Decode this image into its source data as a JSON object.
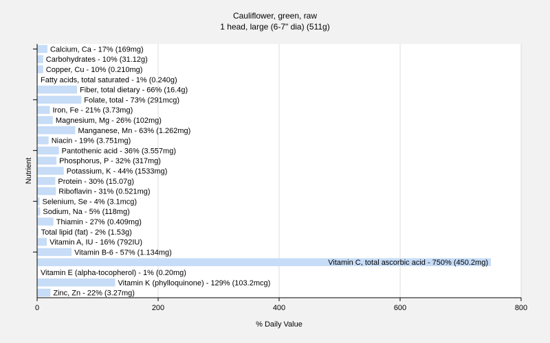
{
  "chart_data": {
    "type": "bar",
    "orientation": "horizontal",
    "title": "Cauliflower, green, raw",
    "subtitle": "1 head, large (6-7\" dia) (511g)",
    "xlabel": "% Daily Value",
    "ylabel": "Nutrient",
    "xlim": [
      0,
      800
    ],
    "xticks": [
      0,
      200,
      400,
      600,
      800
    ],
    "grid": true,
    "bar_color": "#c6dcf7",
    "categories": [
      "Calcium, Ca",
      "Carbohydrates",
      "Copper, Cu",
      "Fatty acids, total saturated",
      "Fiber, total dietary",
      "Folate, total",
      "Iron, Fe",
      "Magnesium, Mg",
      "Manganese, Mn",
      "Niacin",
      "Pantothenic acid",
      "Phosphorus, P",
      "Potassium, K",
      "Protein",
      "Riboflavin",
      "Selenium, Se",
      "Sodium, Na",
      "Thiamin",
      "Total lipid (fat)",
      "Vitamin A, IU",
      "Vitamin B-6",
      "Vitamin C, total ascorbic acid",
      "Vitamin E (alpha-tocopherol)",
      "Vitamin K (phylloquinone)",
      "Zinc, Zn"
    ],
    "values": [
      17,
      10,
      10,
      1,
      66,
      73,
      21,
      26,
      63,
      19,
      36,
      32,
      44,
      30,
      31,
      4,
      5,
      27,
      2,
      16,
      57,
      750,
      1,
      129,
      22
    ],
    "labels": [
      "Calcium, Ca - 17% (169mg)",
      "Carbohydrates - 10% (31.12g)",
      "Copper, Cu - 10% (0.210mg)",
      "Fatty acids, total saturated - 1% (0.240g)",
      "Fiber, total dietary - 66% (16.4g)",
      "Folate, total - 73% (291mcg)",
      "Iron, Fe - 21% (3.73mg)",
      "Magnesium, Mg - 26% (102mg)",
      "Manganese, Mn - 63% (1.262mg)",
      "Niacin - 19% (3.751mg)",
      "Pantothenic acid - 36% (3.557mg)",
      "Phosphorus, P - 32% (317mg)",
      "Potassium, K - 44% (1533mg)",
      "Protein - 30% (15.07g)",
      "Riboflavin - 31% (0.521mg)",
      "Selenium, Se - 4% (3.1mcg)",
      "Sodium, Na - 5% (118mg)",
      "Thiamin - 27% (0.409mg)",
      "Total lipid (fat) - 2% (1.53g)",
      "Vitamin A, IU - 16% (792IU)",
      "Vitamin B-6 - 57% (1.134mg)",
      "Vitamin C, total ascorbic acid - 750% (450.2mg)",
      "Vitamin E (alpha-tocopherol) - 1% (0.20mg)",
      "Vitamin K (phylloquinone) - 129% (103.2mcg)",
      "Zinc, Zn - 22% (3.27mg)"
    ]
  }
}
